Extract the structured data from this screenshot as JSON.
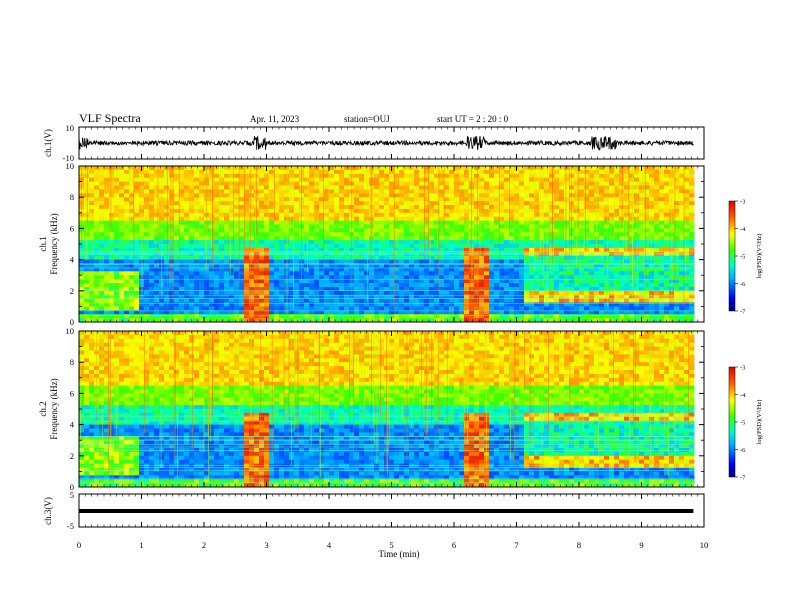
{
  "header": {
    "title": "VLF Spectra",
    "date": "Apr. 11, 2023",
    "station": "station=OUJ",
    "start": "start UT = 2 : 20 : 0"
  },
  "chart_data": [
    {
      "type": "line",
      "panel": "ch1-waveform",
      "ylabel": "ch.1(V)",
      "ylim": [
        -10,
        10
      ],
      "ytick_labels": [
        "10",
        "-10"
      ],
      "xlim": [
        0,
        10
      ],
      "color": "#000000"
    },
    {
      "type": "heatmap",
      "panel": "ch1-spectrogram",
      "ylabel": "ch.1\nFrequency (kHz)",
      "ylim": [
        0,
        10
      ],
      "xlim": [
        0,
        10
      ],
      "ytick_labels": [
        "0",
        "2",
        "4",
        "6",
        "8",
        "10"
      ],
      "colorbar": {
        "label": "log(PSD)(V²/Hz)",
        "range": [
          -7,
          -3
        ],
        "tick_labels": [
          "-3",
          "-4",
          "-5",
          "-6",
          "-7"
        ]
      },
      "bursts_min": [
        [
          2.65,
          3.0
        ],
        [
          6.2,
          6.55
        ]
      ],
      "enhanced_band_interval_min": [
        7.1,
        9.8
      ]
    },
    {
      "type": "heatmap",
      "panel": "ch2-spectrogram",
      "ylabel": "ch.2\nFrequency (kHz)",
      "ylim": [
        0,
        10
      ],
      "xlim": [
        0,
        10
      ],
      "ytick_labels": [
        "0",
        "2",
        "4",
        "6",
        "8",
        "10"
      ],
      "colorbar": {
        "label": "log(PSD)(V²/Hz)",
        "range": [
          -7,
          -3
        ],
        "tick_labels": [
          "-3",
          "-4",
          "-5",
          "-6",
          "-7"
        ]
      },
      "bursts_min": [
        [
          2.65,
          3.0
        ],
        [
          6.2,
          6.55
        ]
      ],
      "enhanced_band_interval_min": [
        7.1,
        9.8
      ]
    },
    {
      "type": "line",
      "panel": "ch3-waveform",
      "ylabel": "ch.3(V)",
      "ylim": [
        -5,
        5
      ],
      "ytick_labels": [
        "5",
        "-5"
      ],
      "xlim": [
        0,
        10
      ],
      "x": [
        0,
        9.83
      ],
      "values": [
        -0.9,
        -0.9
      ],
      "color": "#000000"
    }
  ],
  "xaxis": {
    "label": "Time (min)",
    "ticks": [
      "0",
      "1",
      "2",
      "3",
      "4",
      "5",
      "6",
      "7",
      "8",
      "9",
      "10"
    ]
  }
}
